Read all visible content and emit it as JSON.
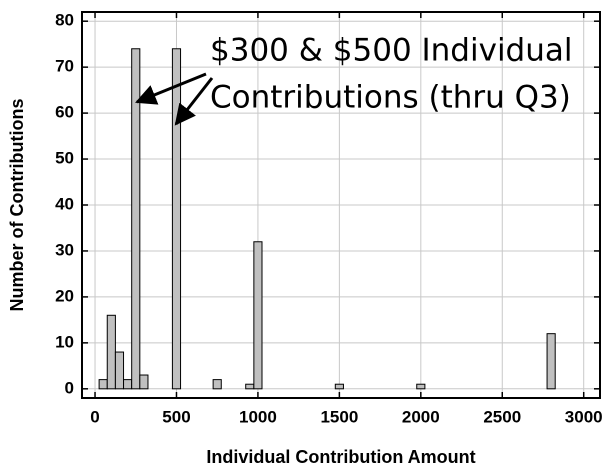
{
  "chart_data": {
    "type": "histogram",
    "x_label": "Individual Contribution Amount",
    "y_label": "Number of Contributions",
    "annotations": [
      "$300 & $500 Individual",
      "Contributions (thru Q3)"
    ],
    "bins": [
      25,
      75,
      125,
      175,
      225,
      275,
      325,
      375,
      425,
      475,
      525,
      575,
      625,
      675,
      725,
      775,
      825,
      875,
      925,
      975,
      1025,
      1075,
      1125,
      1175,
      1225,
      1275,
      1325,
      1375,
      1425,
      1475,
      1525,
      1575,
      1625,
      1675,
      1725,
      1775,
      1825,
      1875,
      1925,
      1975,
      2025,
      2075,
      2125,
      2175,
      2225,
      2275,
      2325,
      2375,
      2425,
      2475,
      2525,
      2575,
      2625,
      2675,
      2725,
      2775,
      2825
    ],
    "values": [
      2,
      16,
      8,
      2,
      74,
      3,
      0,
      0,
      0,
      74,
      0,
      0,
      0,
      0,
      2,
      0,
      0,
      0,
      1,
      32,
      0,
      0,
      0,
      0,
      0,
      0,
      0,
      0,
      0,
      1,
      0,
      0,
      0,
      0,
      0,
      0,
      0,
      0,
      0,
      1,
      0,
      0,
      0,
      0,
      0,
      0,
      0,
      0,
      0,
      0,
      0,
      0,
      0,
      0,
      0,
      12
    ],
    "color": "#c0c0c0",
    "xlim": [
      -80,
      3100
    ],
    "xticks": [
      0,
      500,
      1000,
      1500,
      2000,
      2500,
      3000
    ],
    "ylim": [
      -2,
      82
    ],
    "yticks": [
      0,
      10,
      20,
      30,
      40,
      50,
      60,
      70,
      80
    ],
    "grid": true
  }
}
